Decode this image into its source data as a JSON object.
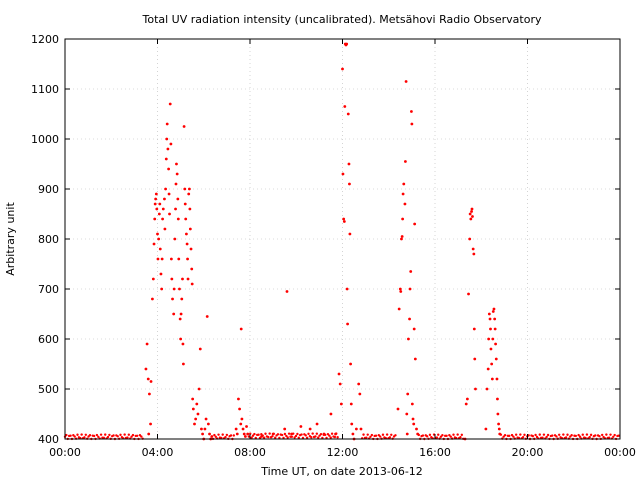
{
  "chart_data": {
    "type": "scatter",
    "title": "Total UV radiation intensity (uncalibrated). Metsähovi Radio Observatory",
    "xlabel": "Time UT, on date 2013-06-12",
    "ylabel": "Arbitrary unit",
    "xlim": [
      0,
      24
    ],
    "ylim": [
      400,
      1200
    ],
    "x_tick_labels": [
      "00:00",
      "04:00",
      "08:00",
      "12:00",
      "16:00",
      "20:00",
      "00:00"
    ],
    "y_tick_labels": [
      "400",
      "500",
      "600",
      "700",
      "800",
      "900",
      "1000",
      "1100",
      "1200"
    ],
    "grid": true,
    "marker_color": "#ff0000",
    "x_unit": "hours UT",
    "points": [
      [
        3.5,
        540
      ],
      [
        3.55,
        590
      ],
      [
        3.6,
        520
      ],
      [
        3.62,
        410
      ],
      [
        3.65,
        490
      ],
      [
        3.7,
        430
      ],
      [
        3.72,
        515
      ],
      [
        3.78,
        680
      ],
      [
        3.82,
        720
      ],
      [
        3.85,
        790
      ],
      [
        3.88,
        840
      ],
      [
        3.9,
        870
      ],
      [
        3.92,
        880
      ],
      [
        3.95,
        890
      ],
      [
        3.97,
        860
      ],
      [
        4.0,
        810
      ],
      [
        4.02,
        760
      ],
      [
        4.05,
        800
      ],
      [
        4.08,
        850
      ],
      [
        4.1,
        870
      ],
      [
        4.12,
        780
      ],
      [
        4.15,
        730
      ],
      [
        4.18,
        700
      ],
      [
        4.2,
        760
      ],
      [
        4.22,
        840
      ],
      [
        4.25,
        860
      ],
      [
        4.3,
        880
      ],
      [
        4.32,
        820
      ],
      [
        4.35,
        900
      ],
      [
        4.38,
        960
      ],
      [
        4.4,
        1000
      ],
      [
        4.42,
        1030
      ],
      [
        4.45,
        980
      ],
      [
        4.48,
        940
      ],
      [
        4.5,
        890
      ],
      [
        4.52,
        850
      ],
      [
        4.55,
        1070
      ],
      [
        4.58,
        990
      ],
      [
        4.6,
        760
      ],
      [
        4.62,
        720
      ],
      [
        4.65,
        680
      ],
      [
        4.7,
        650
      ],
      [
        4.72,
        700
      ],
      [
        4.75,
        800
      ],
      [
        4.78,
        860
      ],
      [
        4.8,
        910
      ],
      [
        4.82,
        950
      ],
      [
        4.85,
        930
      ],
      [
        4.88,
        880
      ],
      [
        4.9,
        840
      ],
      [
        4.92,
        760
      ],
      [
        4.95,
        700
      ],
      [
        4.98,
        640
      ],
      [
        5.0,
        600
      ],
      [
        5.02,
        650
      ],
      [
        5.05,
        680
      ],
      [
        5.08,
        720
      ],
      [
        5.1,
        590
      ],
      [
        5.12,
        550
      ],
      [
        5.15,
        1025
      ],
      [
        5.18,
        900
      ],
      [
        5.2,
        870
      ],
      [
        5.22,
        840
      ],
      [
        5.25,
        810
      ],
      [
        5.28,
        790
      ],
      [
        5.3,
        760
      ],
      [
        5.32,
        720
      ],
      [
        5.35,
        890
      ],
      [
        5.38,
        900
      ],
      [
        5.4,
        860
      ],
      [
        5.42,
        820
      ],
      [
        5.45,
        780
      ],
      [
        5.48,
        740
      ],
      [
        5.5,
        710
      ],
      [
        5.52,
        480
      ],
      [
        5.55,
        460
      ],
      [
        5.6,
        430
      ],
      [
        5.65,
        440
      ],
      [
        5.7,
        470
      ],
      [
        5.75,
        450
      ],
      [
        5.8,
        500
      ],
      [
        5.85,
        580
      ],
      [
        5.9,
        420
      ],
      [
        5.95,
        410
      ],
      [
        6.0,
        400
      ],
      [
        6.05,
        420
      ],
      [
        6.1,
        440
      ],
      [
        6.15,
        645
      ],
      [
        6.2,
        430
      ],
      [
        6.25,
        410
      ],
      [
        6.3,
        400
      ],
      [
        6.35,
        405
      ],
      [
        7.4,
        420
      ],
      [
        7.45,
        410
      ],
      [
        7.5,
        480
      ],
      [
        7.55,
        460
      ],
      [
        7.6,
        430
      ],
      [
        7.62,
        620
      ],
      [
        7.65,
        440
      ],
      [
        7.7,
        420
      ],
      [
        7.75,
        410
      ],
      [
        7.8,
        405
      ],
      [
        7.85,
        425
      ],
      [
        7.9,
        410
      ],
      [
        8.5,
        405
      ],
      [
        9.0,
        410
      ],
      [
        9.5,
        420
      ],
      [
        9.6,
        695
      ],
      [
        9.8,
        410
      ],
      [
        10.2,
        425
      ],
      [
        10.6,
        420
      ],
      [
        10.9,
        430
      ],
      [
        11.2,
        410
      ],
      [
        11.5,
        450
      ],
      [
        11.7,
        410
      ],
      [
        11.85,
        530
      ],
      [
        11.9,
        510
      ],
      [
        11.95,
        470
      ],
      [
        12.0,
        1140
      ],
      [
        12.02,
        930
      ],
      [
        12.05,
        840
      ],
      [
        12.08,
        835
      ],
      [
        12.1,
        1065
      ],
      [
        12.12,
        1190
      ],
      [
        12.15,
        1188
      ],
      [
        12.18,
        1190
      ],
      [
        12.2,
        700
      ],
      [
        12.22,
        630
      ],
      [
        12.25,
        1050
      ],
      [
        12.28,
        950
      ],
      [
        12.3,
        910
      ],
      [
        12.32,
        810
      ],
      [
        12.35,
        550
      ],
      [
        12.38,
        470
      ],
      [
        12.4,
        430
      ],
      [
        12.45,
        410
      ],
      [
        12.5,
        400
      ],
      [
        12.6,
        420
      ],
      [
        12.7,
        510
      ],
      [
        12.75,
        490
      ],
      [
        12.8,
        420
      ],
      [
        14.4,
        460
      ],
      [
        14.45,
        660
      ],
      [
        14.5,
        700
      ],
      [
        14.52,
        695
      ],
      [
        14.55,
        800
      ],
      [
        14.58,
        805
      ],
      [
        14.6,
        840
      ],
      [
        14.62,
        890
      ],
      [
        14.65,
        910
      ],
      [
        14.7,
        870
      ],
      [
        14.72,
        955
      ],
      [
        14.75,
        1115
      ],
      [
        14.78,
        450
      ],
      [
        14.8,
        410
      ],
      [
        14.82,
        490
      ],
      [
        14.85,
        600
      ],
      [
        14.9,
        640
      ],
      [
        14.92,
        700
      ],
      [
        14.95,
        735
      ],
      [
        14.98,
        1055
      ],
      [
        15.0,
        1030
      ],
      [
        15.02,
        470
      ],
      [
        15.05,
        440
      ],
      [
        15.08,
        430
      ],
      [
        15.1,
        620
      ],
      [
        15.12,
        830
      ],
      [
        15.15,
        560
      ],
      [
        15.2,
        420
      ],
      [
        15.25,
        410
      ],
      [
        17.3,
        400
      ],
      [
        17.35,
        470
      ],
      [
        17.4,
        480
      ],
      [
        17.45,
        690
      ],
      [
        17.5,
        800
      ],
      [
        17.52,
        850
      ],
      [
        17.55,
        840
      ],
      [
        17.58,
        855
      ],
      [
        17.6,
        860
      ],
      [
        17.62,
        845
      ],
      [
        17.65,
        780
      ],
      [
        17.68,
        770
      ],
      [
        17.7,
        620
      ],
      [
        17.72,
        560
      ],
      [
        17.75,
        500
      ],
      [
        18.2,
        420
      ],
      [
        18.25,
        500
      ],
      [
        18.3,
        540
      ],
      [
        18.32,
        600
      ],
      [
        18.35,
        650
      ],
      [
        18.38,
        640
      ],
      [
        18.4,
        620
      ],
      [
        18.42,
        580
      ],
      [
        18.45,
        550
      ],
      [
        18.48,
        520
      ],
      [
        18.5,
        600
      ],
      [
        18.52,
        655
      ],
      [
        18.55,
        660
      ],
      [
        18.58,
        640
      ],
      [
        18.6,
        620
      ],
      [
        18.62,
        590
      ],
      [
        18.65,
        560
      ],
      [
        18.68,
        520
      ],
      [
        18.7,
        480
      ],
      [
        18.72,
        450
      ],
      [
        18.75,
        430
      ],
      [
        18.78,
        420
      ],
      [
        18.8,
        410
      ]
    ],
    "baseline_runs": [
      [
        0.0,
        3.4,
        400
      ],
      [
        6.4,
        7.35,
        400
      ],
      [
        7.95,
        11.8,
        402
      ],
      [
        12.85,
        14.35,
        400
      ],
      [
        15.3,
        17.25,
        400
      ],
      [
        18.85,
        24.0,
        400
      ]
    ]
  }
}
